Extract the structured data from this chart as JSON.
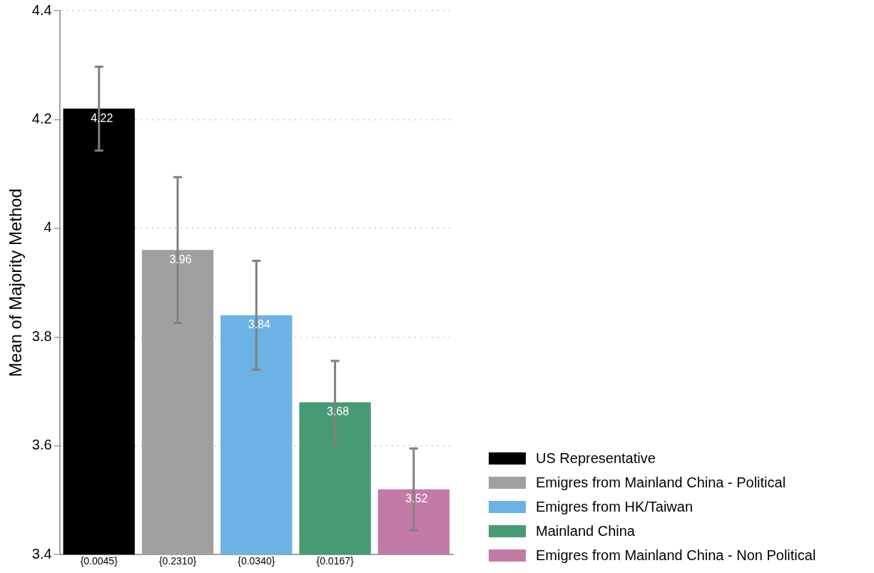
{
  "chart_data": {
    "type": "bar",
    "ylabel": "Mean of Majority Method",
    "categories": [
      "{0.0045}",
      "{0.2310}",
      "{0.0340}",
      "{0.0167}",
      null
    ],
    "series": [
      {
        "name": "US Representative",
        "color": "#000000",
        "values": [
          4.22,
          null,
          null,
          null,
          null
        ],
        "errors": [
          0.077,
          null,
          null,
          null,
          null
        ]
      },
      {
        "name": "Emigres from Mainland China - Political",
        "color": "#a0a0a0",
        "values": [
          null,
          3.96,
          null,
          null,
          null
        ],
        "errors": [
          null,
          0.134,
          null,
          null,
          null
        ]
      },
      {
        "name": "Emigres from HK/Taiwan",
        "color": "#6cb2e4",
        "values": [
          null,
          null,
          3.84,
          null,
          null
        ],
        "errors": [
          null,
          null,
          0.1,
          null,
          null
        ]
      },
      {
        "name": "Mainland China",
        "color": "#479b74",
        "values": [
          null,
          null,
          null,
          3.68,
          null
        ],
        "errors": [
          null,
          null,
          null,
          0.076,
          null
        ]
      },
      {
        "name": "Emigres from Mainland China - Non Political",
        "color": "#c27ba7",
        "values": [
          null,
          null,
          null,
          null,
          3.52
        ],
        "errors": [
          null,
          null,
          null,
          null,
          0.075
        ]
      }
    ],
    "ylim": [
      3.4,
      4.4
    ],
    "yticks": [
      3.4,
      3.6,
      3.8,
      4,
      4.2,
      4.4
    ],
    "grid": "y",
    "legend": "bottom right",
    "data_labels": true
  }
}
